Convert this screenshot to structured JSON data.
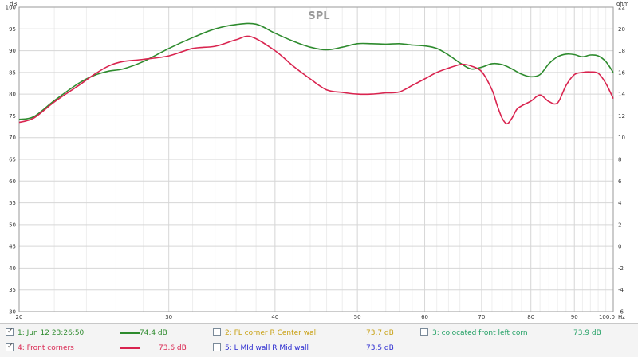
{
  "chart_data": {
    "type": "line",
    "title": "SPL",
    "xscale": "log",
    "xlim": [
      20,
      100
    ],
    "ylim": [
      30,
      100
    ],
    "y2lim": [
      -6,
      22
    ],
    "yunit": "dB",
    "y2unit": "ohm",
    "xunit": "Hz",
    "grid": true,
    "x_ticks": [
      20,
      30,
      40,
      50,
      60,
      70,
      80,
      90,
      100
    ],
    "x_tick_labels": [
      "20",
      "30",
      "40",
      "50",
      "60",
      "70",
      "80",
      "90",
      "100.0"
    ],
    "y_ticks": [
      "100",
      "95",
      "90",
      "85",
      "80",
      "75",
      "70",
      "65",
      "60",
      "55",
      "50",
      "45",
      "40",
      "35",
      "30"
    ],
    "y2_ticks": [
      "22",
      "20",
      "18",
      "16",
      "14",
      "12",
      "10",
      "8",
      "6",
      "4",
      "2",
      "0",
      "-2",
      "-4",
      "-6"
    ],
    "series": [
      {
        "name": "1: Jun 12 23:26:50",
        "color": "#2e8b2e",
        "x": [
          20,
          20.8,
          22,
          23.5,
          24.5,
          25.5,
          26.5,
          28,
          30,
          32,
          34,
          36,
          38,
          40,
          42,
          44,
          46,
          48,
          50,
          52,
          54,
          56,
          58,
          60,
          62,
          64,
          66,
          68,
          70,
          72,
          74,
          76,
          78,
          80,
          82,
          84,
          86,
          88,
          90,
          92,
          94,
          96,
          98,
          100
        ],
        "values": [
          74.2,
          74.8,
          78.5,
          82.5,
          84.3,
          85.3,
          85.8,
          87.5,
          90.5,
          93.0,
          95.0,
          96.0,
          96.1,
          94.0,
          92.2,
          90.8,
          90.2,
          90.8,
          91.6,
          91.6,
          91.5,
          91.6,
          91.3,
          91.1,
          90.5,
          89.0,
          87.2,
          85.8,
          86.2,
          87.0,
          86.8,
          85.8,
          84.6,
          84.0,
          84.5,
          87.0,
          88.6,
          89.2,
          89.1,
          88.6,
          89.0,
          88.8,
          87.5,
          85.0
        ]
      },
      {
        "name": "4: Front corners",
        "color": "#d9244f",
        "x": [
          20,
          20.8,
          22,
          23.5,
          24.5,
          25.5,
          26.5,
          28,
          30,
          32,
          34,
          36,
          37.5,
          40,
          42,
          44,
          46,
          48,
          50,
          52,
          54,
          56,
          58,
          60,
          62,
          64,
          66,
          67,
          68,
          70,
          72,
          73,
          74,
          75,
          76,
          77,
          78,
          80,
          82,
          84,
          86,
          88,
          90,
          92,
          94,
          96,
          98,
          100
        ],
        "values": [
          73.5,
          74.5,
          78.2,
          82.0,
          84.5,
          86.5,
          87.5,
          88.0,
          88.8,
          90.5,
          91.0,
          92.5,
          93.2,
          90.0,
          86.5,
          83.5,
          81.0,
          80.4,
          80.0,
          80.0,
          80.3,
          80.5,
          82.0,
          83.5,
          85.0,
          86.0,
          86.8,
          86.8,
          86.5,
          85.2,
          81.0,
          77.5,
          74.5,
          73.2,
          74.5,
          76.5,
          77.3,
          78.4,
          79.8,
          78.3,
          78.0,
          82.0,
          84.5,
          85.0,
          85.1,
          84.8,
          82.5,
          79.0
        ]
      }
    ]
  },
  "legend": {
    "items": [
      {
        "label": "1: Jun 12 23:26:50",
        "value": "74.4 dB",
        "checked": true,
        "color": "#2e8b2e"
      },
      {
        "label": "2: FL corner R Center wall",
        "value": "73.7 dB",
        "checked": false,
        "color": "#c8a012"
      },
      {
        "label": "3: colocated front left corn",
        "value": "73.9 dB",
        "checked": false,
        "color": "#21a064"
      },
      {
        "label": "4: Front corners",
        "value": "73.6 dB",
        "checked": true,
        "color": "#d9244f"
      },
      {
        "label": "5: L MId wall R Mid wall",
        "value": "73.5 dB",
        "checked": false,
        "color": "#2a2ad0"
      }
    ]
  }
}
